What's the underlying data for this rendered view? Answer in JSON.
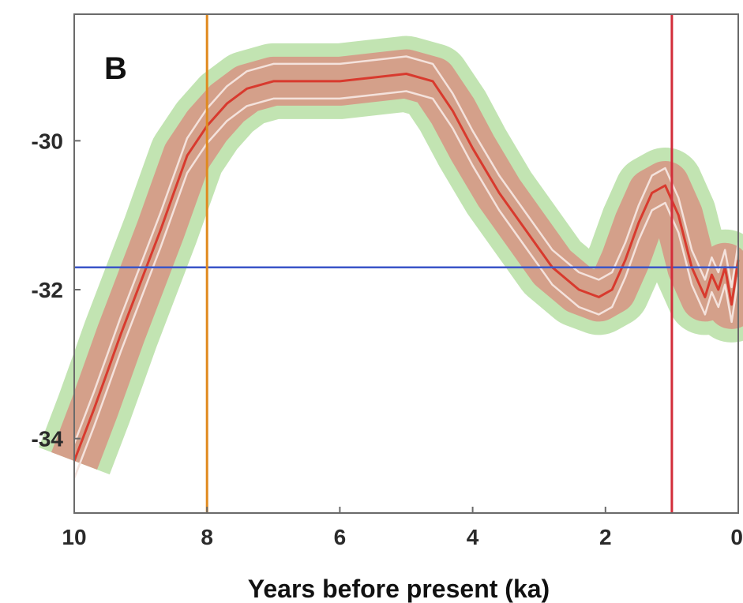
{
  "chart_data": {
    "type": "line",
    "panel_label": "B",
    "title": "",
    "xlabel": "Years before present (ka)",
    "ylabel": "",
    "xlim": [
      10,
      0
    ],
    "ylim": [
      -35.0,
      -28.3
    ],
    "x_ticks": [
      "10",
      "8",
      "6",
      "4",
      "2",
      "0"
    ],
    "y_ticks": [
      "-30",
      "-32",
      "-34"
    ],
    "grid": false,
    "series": [
      {
        "x": [
          10,
          9.7,
          9.5,
          9.3,
          9.0,
          8.7,
          8.5,
          8.3,
          8.0,
          7.7,
          7.4,
          7.0,
          6.5,
          6.0,
          5.5,
          5.0,
          4.6,
          4.3,
          4.0,
          3.6,
          3.2,
          2.8,
          2.4,
          2.1,
          1.9,
          1.7,
          1.5,
          1.3,
          1.1,
          0.9,
          0.7,
          0.5,
          0.4,
          0.3,
          0.2,
          0.1,
          0.0
        ],
        "y": [
          -34.3,
          -33.6,
          -33.1,
          -32.6,
          -31.9,
          -31.2,
          -30.7,
          -30.2,
          -29.8,
          -29.5,
          -29.3,
          -29.2,
          -29.2,
          -29.2,
          -29.15,
          -29.1,
          -29.2,
          -29.6,
          -30.1,
          -30.7,
          -31.2,
          -31.7,
          -32.0,
          -32.1,
          -32.0,
          -31.6,
          -31.1,
          -30.7,
          -30.6,
          -31.0,
          -31.7,
          -32.1,
          -31.8,
          -32.0,
          -31.7,
          -32.2,
          -31.6
        ],
        "color": "#d83a2e"
      }
    ],
    "confidence_band_colors": {
      "inner": "#d98a7c",
      "outer": "#8fce72",
      "bound_line": "#f4e2dc"
    },
    "reference_lines": [
      {
        "orientation": "horizontal",
        "value": -31.7,
        "color": "#3a55c8"
      },
      {
        "orientation": "vertical",
        "value": 8.0,
        "color": "#e08a1e"
      },
      {
        "orientation": "vertical",
        "value": 1.0,
        "color": "#d22d3a"
      }
    ]
  }
}
